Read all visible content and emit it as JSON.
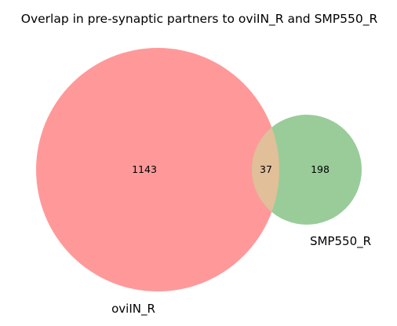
{
  "title": "Overlap in pre-synaptic partners to oviIN_R and SMP550_R",
  "venn": {
    "type": "venn2",
    "sets": [
      {
        "label": "oviIN_R",
        "only_count": "1143",
        "color": "#ff9999"
      },
      {
        "label": "SMP550_R",
        "only_count": "198",
        "color": "#99cc99"
      }
    ],
    "intersection": {
      "count": "37",
      "color": "#e0bf99"
    }
  }
}
